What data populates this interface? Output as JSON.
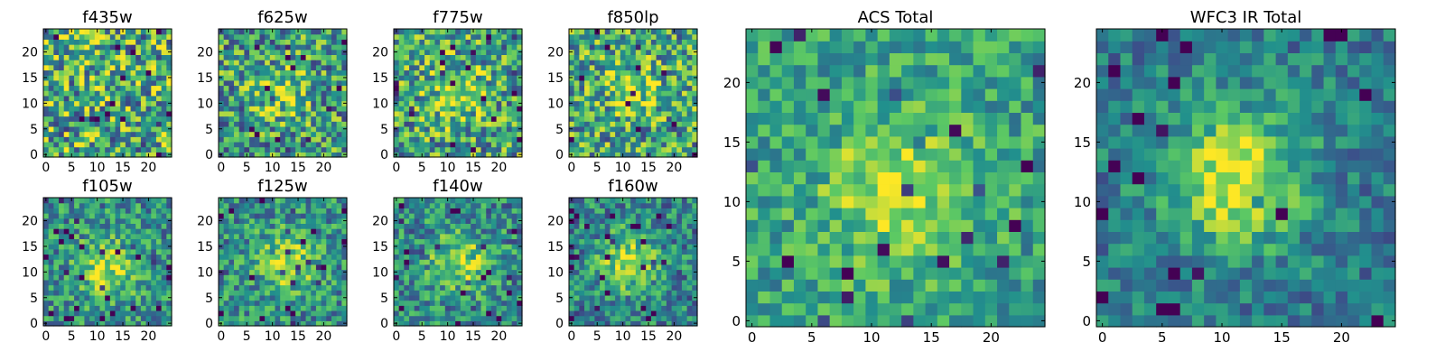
{
  "figure": {
    "colormap": "viridis",
    "colormap_stops": [
      "#440154",
      "#3b528b",
      "#21908d",
      "#5dc963",
      "#fde725"
    ]
  },
  "chart_data": [
    {
      "type": "heatmap",
      "title": "f435w",
      "xticks": [
        "0",
        "5",
        "10",
        "15",
        "20"
      ],
      "yticks": [
        "0",
        "5",
        "10",
        "15",
        "20"
      ],
      "xlim": [
        -0.5,
        24.5
      ],
      "ylim": [
        -0.5,
        24.5
      ],
      "grid": "25x25"
    },
    {
      "type": "heatmap",
      "title": "f625w",
      "xticks": [
        "0",
        "5",
        "10",
        "15",
        "20"
      ],
      "yticks": [
        "0",
        "5",
        "10",
        "15",
        "20"
      ],
      "xlim": [
        -0.5,
        24.5
      ],
      "ylim": [
        -0.5,
        24.5
      ],
      "grid": "25x25"
    },
    {
      "type": "heatmap",
      "title": "f775w",
      "xticks": [
        "0",
        "5",
        "10",
        "15",
        "20"
      ],
      "yticks": [
        "0",
        "5",
        "10",
        "15",
        "20"
      ],
      "xlim": [
        -0.5,
        24.5
      ],
      "ylim": [
        -0.5,
        24.5
      ],
      "grid": "25x25"
    },
    {
      "type": "heatmap",
      "title": "f850lp",
      "xticks": [
        "0",
        "5",
        "10",
        "15",
        "20"
      ],
      "yticks": [
        "0",
        "5",
        "10",
        "15",
        "20"
      ],
      "xlim": [
        -0.5,
        24.5
      ],
      "ylim": [
        -0.5,
        24.5
      ],
      "grid": "25x25"
    },
    {
      "type": "heatmap",
      "title": "f105w",
      "xticks": [
        "0",
        "5",
        "10",
        "15",
        "20"
      ],
      "yticks": [
        "0",
        "5",
        "10",
        "15",
        "20"
      ],
      "xlim": [
        -0.5,
        24.5
      ],
      "ylim": [
        -0.5,
        24.5
      ],
      "grid": "25x25"
    },
    {
      "type": "heatmap",
      "title": "f125w",
      "xticks": [
        "0",
        "5",
        "10",
        "15",
        "20"
      ],
      "yticks": [
        "0",
        "5",
        "10",
        "15",
        "20"
      ],
      "xlim": [
        -0.5,
        24.5
      ],
      "ylim": [
        -0.5,
        24.5
      ],
      "grid": "25x25"
    },
    {
      "type": "heatmap",
      "title": "f140w",
      "xticks": [
        "0",
        "5",
        "10",
        "15",
        "20"
      ],
      "yticks": [
        "0",
        "5",
        "10",
        "15",
        "20"
      ],
      "xlim": [
        -0.5,
        24.5
      ],
      "ylim": [
        -0.5,
        24.5
      ],
      "grid": "25x25"
    },
    {
      "type": "heatmap",
      "title": "f160w",
      "xticks": [
        "0",
        "5",
        "10",
        "15",
        "20"
      ],
      "yticks": [
        "0",
        "5",
        "10",
        "15",
        "20"
      ],
      "xlim": [
        -0.5,
        24.5
      ],
      "ylim": [
        -0.5,
        24.5
      ],
      "grid": "25x25"
    },
    {
      "type": "heatmap",
      "title": "ACS Total",
      "xticks": [
        "0",
        "5",
        "10",
        "15",
        "20"
      ],
      "yticks": [
        "0",
        "5",
        "10",
        "15",
        "20"
      ],
      "xlim": [
        -0.5,
        24.5
      ],
      "ylim": [
        -0.5,
        24.5
      ],
      "grid": "25x25"
    },
    {
      "type": "heatmap",
      "title": "WFC3 IR Total",
      "xticks": [
        "0",
        "5",
        "10",
        "15",
        "20"
      ],
      "yticks": [
        "0",
        "5",
        "10",
        "15",
        "20"
      ],
      "xlim": [
        -0.5,
        24.5
      ],
      "ylim": [
        -0.5,
        24.5
      ],
      "grid": "25x25"
    }
  ]
}
